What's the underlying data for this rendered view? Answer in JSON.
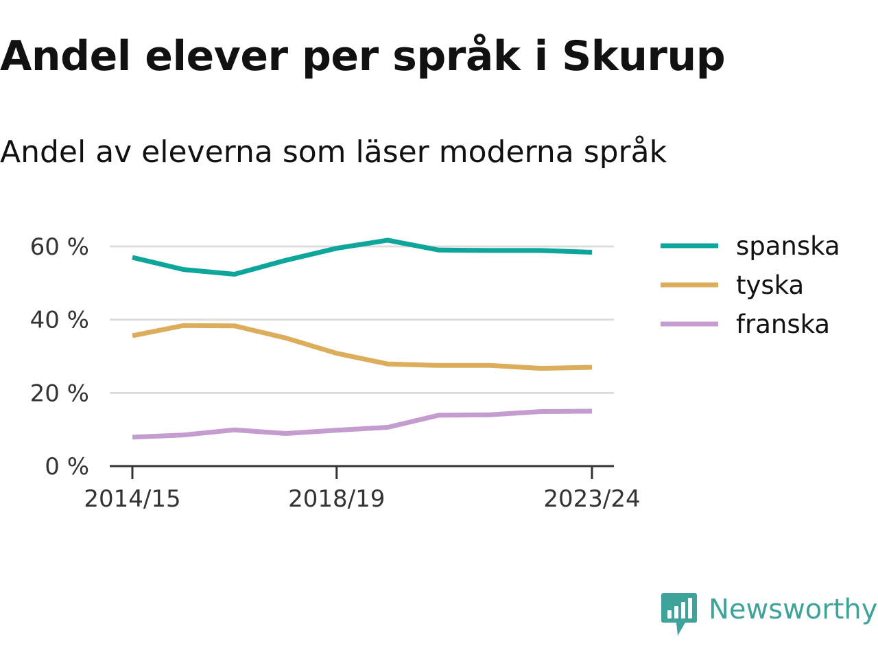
{
  "title": "Andel elever per språk i Skurup",
  "subtitle": "Andel av eleverna som läser moderna språk",
  "brand": {
    "name": "Newsworthy",
    "icon": "newsworthy-logo-icon",
    "color": "#3ea39a"
  },
  "chart_data": {
    "type": "line",
    "x": [
      "2014/15",
      "2015/16",
      "2016/17",
      "2017/18",
      "2018/19",
      "2019/20",
      "2020/21",
      "2021/22",
      "2022/23",
      "2023/24"
    ],
    "x_tick_labels": [
      "2014/15",
      "2018/19",
      "2023/24"
    ],
    "series": [
      {
        "name": "spanska",
        "color": "#0ea59b",
        "values": [
          57,
          53.7,
          52.4,
          56.2,
          59.5,
          61.7,
          59,
          58.9,
          58.9,
          58.4
        ]
      },
      {
        "name": "tyska",
        "color": "#dcad5a",
        "values": [
          35.6,
          38.4,
          38.3,
          35,
          30.8,
          27.9,
          27.5,
          27.5,
          26.7,
          27
        ]
      },
      {
        "name": "franska",
        "color": "#c59ccf",
        "values": [
          7.9,
          8.5,
          9.9,
          8.9,
          9.8,
          10.6,
          13.9,
          14,
          14.9,
          15
        ]
      }
    ],
    "y_ticks": [
      0,
      20,
      40,
      60
    ],
    "y_tick_labels": [
      "0 %",
      "20 %",
      "40 %",
      "60 %"
    ],
    "ylim": [
      0,
      60
    ],
    "grid": true,
    "legend": "right"
  }
}
